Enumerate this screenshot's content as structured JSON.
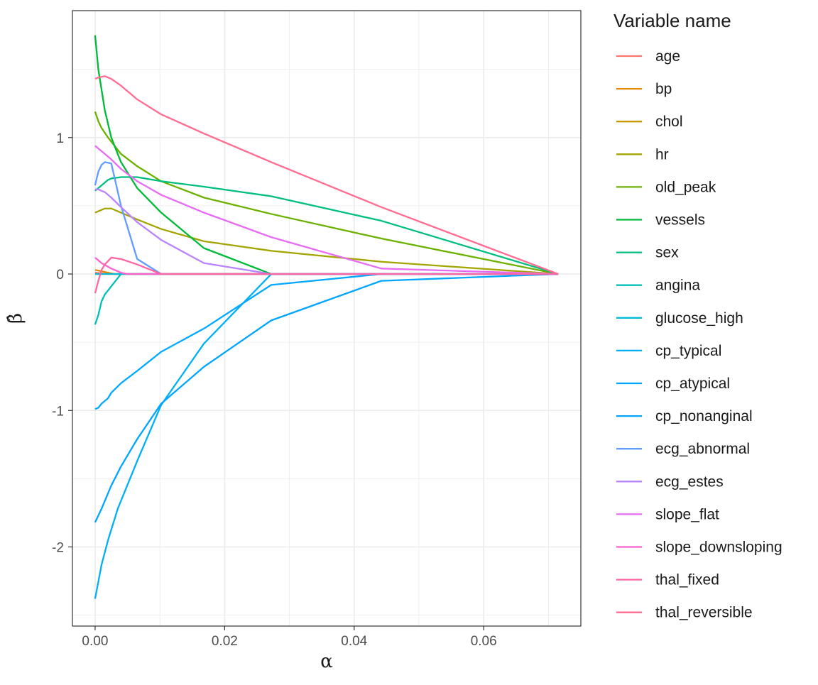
{
  "chart_data": {
    "type": "line",
    "xlabel": "α",
    "ylabel": "β̂",
    "xlim": [
      -0.0035,
      0.075
    ],
    "ylim": [
      -2.58,
      1.93
    ],
    "x_ticks": [
      0.0,
      0.02,
      0.04,
      0.06
    ],
    "x_tick_labels": [
      "0.00",
      "0.02",
      "0.04",
      "0.06"
    ],
    "y_ticks": [
      -2,
      -1,
      0,
      1
    ],
    "y_tick_labels": [
      "-2",
      "-1",
      "0",
      "1"
    ],
    "grid": true,
    "legend": {
      "title": "Variable name",
      "position": "right"
    },
    "series": [
      {
        "name": "age",
        "color": "#F8766D",
        "points": [
          [
            0,
            0.01
          ],
          [
            0.001,
            0.005
          ],
          [
            0.002,
            0.0
          ],
          [
            0.0715,
            0.0
          ]
        ]
      },
      {
        "name": "bp",
        "color": "#E58700",
        "points": [
          [
            0,
            0.03
          ],
          [
            0.001,
            0.02
          ],
          [
            0.002,
            0.01
          ],
          [
            0.003,
            0.0
          ],
          [
            0.0715,
            0.0
          ]
        ]
      },
      {
        "name": "chol",
        "color": "#C99800",
        "points": [
          [
            0,
            0.0
          ],
          [
            0.0715,
            0.0
          ]
        ]
      },
      {
        "name": "hr",
        "color": "#A3A500",
        "points": [
          [
            0,
            0.45
          ],
          [
            0.001,
            0.47
          ],
          [
            0.0015,
            0.48
          ],
          [
            0.0025,
            0.48
          ],
          [
            0.004,
            0.45
          ],
          [
            0.0065,
            0.4
          ],
          [
            0.0102,
            0.33
          ],
          [
            0.0168,
            0.24
          ],
          [
            0.0272,
            0.17
          ],
          [
            0.0442,
            0.09
          ],
          [
            0.0715,
            0.0
          ]
        ]
      },
      {
        "name": "old_peak",
        "color": "#6BB100",
        "points": [
          [
            0,
            1.19
          ],
          [
            0.0005,
            1.12
          ],
          [
            0.001,
            1.07
          ],
          [
            0.002,
            1.0
          ],
          [
            0.004,
            0.88
          ],
          [
            0.0065,
            0.79
          ],
          [
            0.0102,
            0.68
          ],
          [
            0.0168,
            0.56
          ],
          [
            0.0272,
            0.44
          ],
          [
            0.0442,
            0.26
          ],
          [
            0.0715,
            0.0
          ]
        ]
      },
      {
        "name": "vessels",
        "color": "#00BA38",
        "points": [
          [
            0,
            1.75
          ],
          [
            0.0005,
            1.5
          ],
          [
            0.0015,
            1.2
          ],
          [
            0.0025,
            1.0
          ],
          [
            0.004,
            0.82
          ],
          [
            0.0065,
            0.63
          ],
          [
            0.0102,
            0.45
          ],
          [
            0.0168,
            0.19
          ],
          [
            0.0272,
            0.0
          ],
          [
            0.0715,
            0.0
          ]
        ]
      },
      {
        "name": "sex",
        "color": "#00BF7D",
        "points": [
          [
            0,
            0.61
          ],
          [
            0.001,
            0.65
          ],
          [
            0.002,
            0.69
          ],
          [
            0.0025,
            0.7
          ],
          [
            0.004,
            0.71
          ],
          [
            0.0065,
            0.71
          ],
          [
            0.0102,
            0.68
          ],
          [
            0.0168,
            0.64
          ],
          [
            0.0272,
            0.57
          ],
          [
            0.0442,
            0.39
          ],
          [
            0.0715,
            0.0
          ]
        ]
      },
      {
        "name": "angina",
        "color": "#00C0B8",
        "points": [
          [
            0,
            -0.37
          ],
          [
            0.0005,
            -0.3
          ],
          [
            0.001,
            -0.2
          ],
          [
            0.0015,
            -0.15
          ],
          [
            0.0025,
            -0.09
          ],
          [
            0.0035,
            -0.03
          ],
          [
            0.004,
            0.0
          ],
          [
            0.0715,
            0.0
          ]
        ]
      },
      {
        "name": "glucose_high",
        "color": "#00BCD8",
        "points": [
          [
            0,
            0.0
          ],
          [
            0.0715,
            0.0
          ]
        ]
      },
      {
        "name": "cp_typical",
        "color": "#00B0F6",
        "points": [
          [
            0,
            -2.38
          ],
          [
            0.001,
            -2.13
          ],
          [
            0.002,
            -1.95
          ],
          [
            0.0035,
            -1.72
          ],
          [
            0.0065,
            -1.37
          ],
          [
            0.0102,
            -0.96
          ],
          [
            0.0168,
            -0.51
          ],
          [
            0.0272,
            0.0
          ],
          [
            0.0715,
            0.0
          ]
        ]
      },
      {
        "name": "cp_atypical",
        "color": "#00A5FF",
        "points": [
          [
            0,
            -1.82
          ],
          [
            0.001,
            -1.72
          ],
          [
            0.0025,
            -1.55
          ],
          [
            0.004,
            -1.41
          ],
          [
            0.0065,
            -1.21
          ],
          [
            0.0102,
            -0.95
          ],
          [
            0.0168,
            -0.68
          ],
          [
            0.0272,
            -0.34
          ],
          [
            0.0442,
            -0.05
          ],
          [
            0.0715,
            0.0
          ]
        ]
      },
      {
        "name": "cp_nonanginal",
        "color": "#00A9FF",
        "points": [
          [
            0,
            -0.99
          ],
          [
            0.0005,
            -0.98
          ],
          [
            0.001,
            -0.95
          ],
          [
            0.002,
            -0.91
          ],
          [
            0.0025,
            -0.87
          ],
          [
            0.004,
            -0.8
          ],
          [
            0.0065,
            -0.71
          ],
          [
            0.0102,
            -0.57
          ],
          [
            0.0168,
            -0.4
          ],
          [
            0.0272,
            -0.08
          ],
          [
            0.0442,
            0.0
          ],
          [
            0.0715,
            0.0
          ]
        ]
      },
      {
        "name": "ecg_abnormal",
        "color": "#619CFF",
        "points": [
          [
            0,
            0.65
          ],
          [
            0.0005,
            0.75
          ],
          [
            0.001,
            0.8
          ],
          [
            0.0015,
            0.82
          ],
          [
            0.0025,
            0.81
          ],
          [
            0.004,
            0.5
          ],
          [
            0.0065,
            0.11
          ],
          [
            0.0102,
            0.0
          ],
          [
            0.0715,
            0.0
          ]
        ]
      },
      {
        "name": "ecg_estes",
        "color": "#B983FF",
        "points": [
          [
            0,
            0.62
          ],
          [
            0.0005,
            0.62
          ],
          [
            0.0015,
            0.6
          ],
          [
            0.0025,
            0.56
          ],
          [
            0.004,
            0.49
          ],
          [
            0.0065,
            0.38
          ],
          [
            0.0102,
            0.25
          ],
          [
            0.0168,
            0.08
          ],
          [
            0.0272,
            0.0
          ],
          [
            0.0715,
            0.0
          ]
        ]
      },
      {
        "name": "slope_flat",
        "color": "#E76BF3",
        "points": [
          [
            0,
            0.94
          ],
          [
            0.001,
            0.9
          ],
          [
            0.0025,
            0.84
          ],
          [
            0.004,
            0.77
          ],
          [
            0.0065,
            0.68
          ],
          [
            0.0102,
            0.58
          ],
          [
            0.0168,
            0.45
          ],
          [
            0.0272,
            0.27
          ],
          [
            0.0442,
            0.04
          ],
          [
            0.0715,
            0.0
          ]
        ]
      },
      {
        "name": "slope_downsloping",
        "color": "#FD61D1",
        "points": [
          [
            0,
            0.12
          ],
          [
            0.001,
            0.08
          ],
          [
            0.0025,
            0.04
          ],
          [
            0.004,
            0.01
          ],
          [
            0.005,
            0.0
          ],
          [
            0.0715,
            0.0
          ]
        ]
      },
      {
        "name": "thal_fixed",
        "color": "#FF67A4",
        "points": [
          [
            0,
            -0.14
          ],
          [
            0.0005,
            -0.05
          ],
          [
            0.001,
            0.03
          ],
          [
            0.0015,
            0.07
          ],
          [
            0.0025,
            0.12
          ],
          [
            0.004,
            0.11
          ],
          [
            0.0065,
            0.07
          ],
          [
            0.0102,
            0.0
          ],
          [
            0.0715,
            0.0
          ]
        ]
      },
      {
        "name": "thal_reversible",
        "color": "#FF6C91",
        "points": [
          [
            0,
            1.43
          ],
          [
            0.0005,
            1.44
          ],
          [
            0.0015,
            1.45
          ],
          [
            0.0025,
            1.43
          ],
          [
            0.004,
            1.38
          ],
          [
            0.0065,
            1.28
          ],
          [
            0.0102,
            1.17
          ],
          [
            0.0168,
            1.03
          ],
          [
            0.0272,
            0.82
          ],
          [
            0.0442,
            0.49
          ],
          [
            0.0715,
            0.0
          ]
        ]
      }
    ]
  }
}
